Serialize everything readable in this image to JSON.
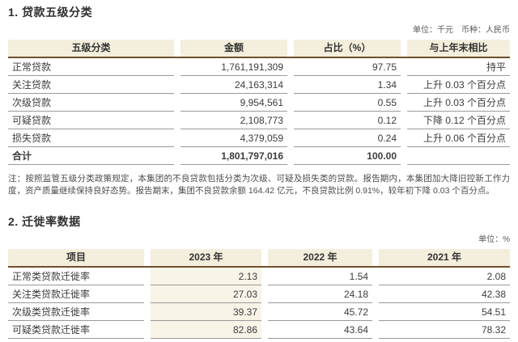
{
  "section1": {
    "title": "1. 贷款五级分类",
    "unit_note": "单位：千元　币种：人民币",
    "table": {
      "headers": [
        "五级分类",
        "金额",
        "占比（%）",
        "与上年末相比"
      ],
      "rows": [
        {
          "name": "正常贷款",
          "amount": "1,761,191,309",
          "pct": "97.75",
          "change": "持平"
        },
        {
          "name": "关注贷款",
          "amount": "24,163,314",
          "pct": "1.34",
          "change": "上升 0.03 个百分点"
        },
        {
          "name": "次级贷款",
          "amount": "9,954,561",
          "pct": "0.55",
          "change": "上升 0.03 个百分点"
        },
        {
          "name": "可疑贷款",
          "amount": "2,108,773",
          "pct": "0.12",
          "change": "下降 0.12 个百分点"
        },
        {
          "name": "损失贷款",
          "amount": "4,379,059",
          "pct": "0.24",
          "change": "上升 0.06 个百分点"
        }
      ],
      "total_row": {
        "name": "合计",
        "amount": "1,801,797,016",
        "pct": "100.00",
        "change": ""
      }
    },
    "note": "注：按照监管五级分类政策规定，本集团的不良贷款包括分类为次级、可疑及损失类的贷款。报告期内，本集团加大降旧控新工作力度，资产质量继续保持良好态势。报告期末，集团不良贷款余额 164.42 亿元，不良贷款比例 0.91%，较年初下降 0.03 个百分点。"
  },
  "section2": {
    "title": "2. 迁徙率数据",
    "unit_note": "单位：%",
    "table": {
      "headers": [
        "项目",
        "2023 年",
        "2022 年",
        "2021 年"
      ],
      "rows": [
        {
          "name": "正常类贷款迁徙率",
          "y2023": "2.13",
          "y2022": "1.54",
          "y2021": "2.08"
        },
        {
          "name": "关注类贷款迁徙率",
          "y2023": "27.03",
          "y2022": "24.18",
          "y2021": "42.38"
        },
        {
          "name": "次级类贷款迁徙率",
          "y2023": "39.37",
          "y2022": "45.72",
          "y2021": "54.51"
        },
        {
          "name": "可疑类贷款迁徙率",
          "y2023": "82.86",
          "y2022": "43.64",
          "y2021": "78.32"
        }
      ]
    }
  },
  "colors": {
    "header_bg": "#f4eedd",
    "highlight_2023_bg": "#f8f4e7",
    "header_rule": "#6f512d",
    "row_rule": "#9a9a9a"
  }
}
